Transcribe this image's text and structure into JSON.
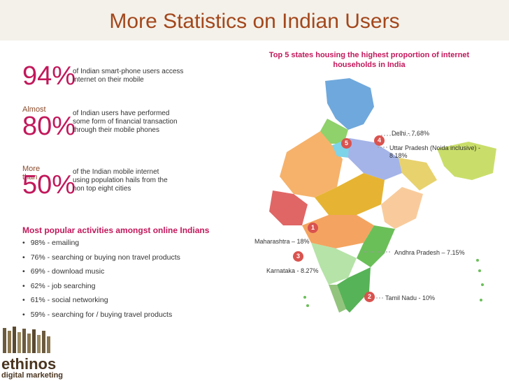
{
  "title": "More Statistics on Indian Users",
  "stats": [
    {
      "prefix": "",
      "value": "94%",
      "text": "of Indian smart-phone users access internet on their mobile"
    },
    {
      "prefix": "Almost",
      "value": "80%",
      "text": "of Indian users have performed some form of financial transaction through their mobile phones"
    },
    {
      "prefix": "More than",
      "value": "50%",
      "text": "of the Indian mobile internet using population hails from the non top eight cities"
    }
  ],
  "activities": {
    "heading": "Most popular activities amongst online Indians",
    "items": [
      "98% - emailing",
      "76% - searching or buying non travel products",
      "69% - download music",
      "62% - job searching",
      "61% - social networking",
      "59% - searching for / buying travel products"
    ]
  },
  "map": {
    "title": "Top 5 states housing the highest proportion of internet households in India",
    "states": [
      {
        "rank": "1",
        "label": "Maharashtra – 18%"
      },
      {
        "rank": "2",
        "label": "Tamil Nadu - 10%"
      },
      {
        "rank": "3",
        "label": "Karnataka - 8.27%"
      },
      {
        "rank": "4",
        "label": "Uttar Pradesh (Noida inclusive)  -  8.18%"
      },
      {
        "rank": "5",
        "label": "Delhi - 7.68%"
      },
      {
        "rank": "",
        "label": "Andhra Pradesh – 7.15%"
      }
    ]
  },
  "logo": {
    "name": "ethinos",
    "tagline": "digital marketing"
  },
  "colors": {
    "title": "#a3471c",
    "accent": "#c2185b",
    "badge": "#d9534f"
  }
}
